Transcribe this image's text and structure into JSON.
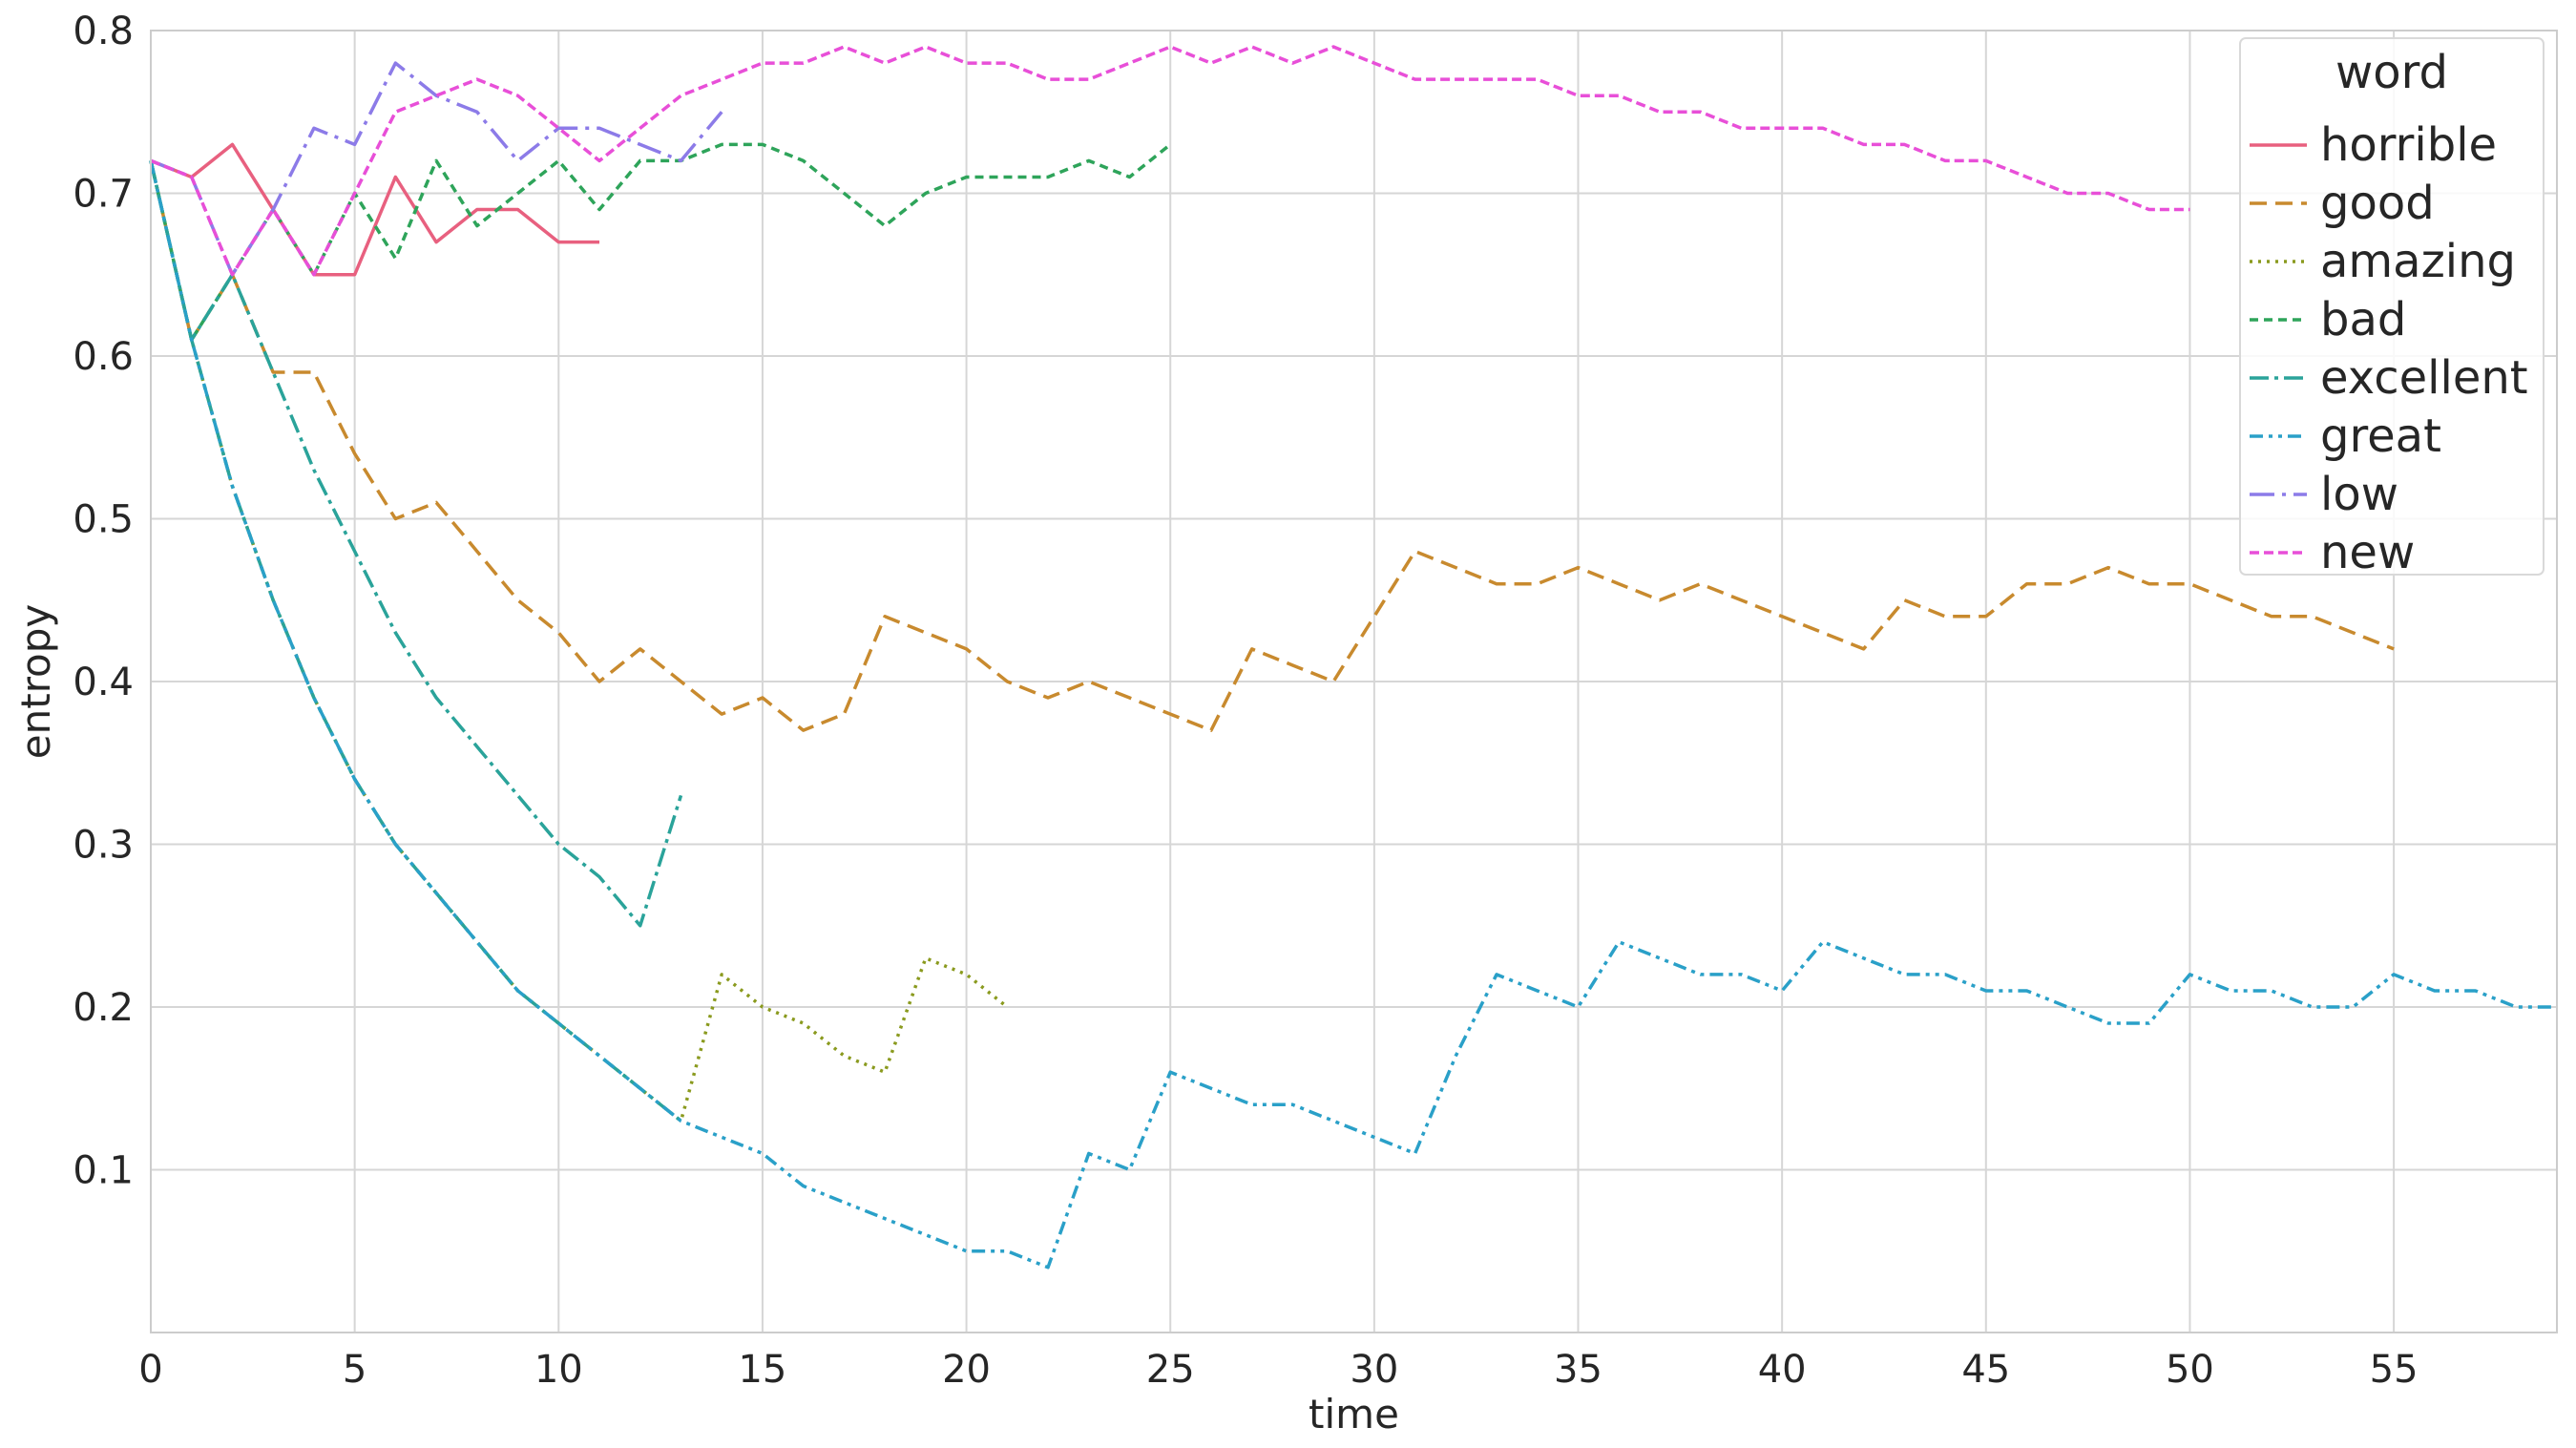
{
  "chart_data": {
    "type": "line",
    "title": "",
    "xlabel": "time",
    "ylabel": "entropy",
    "xlim": [
      0,
      59
    ],
    "ylim": [
      0,
      0.8
    ],
    "x_ticks": [
      0,
      5,
      10,
      15,
      20,
      25,
      30,
      35,
      40,
      45,
      50,
      55
    ],
    "y_ticks": [
      0.1,
      0.2,
      0.3,
      0.4,
      0.5,
      0.6,
      0.7,
      0.8
    ],
    "grid": true,
    "legend": {
      "title": "word",
      "position": "top-right"
    },
    "series": [
      {
        "name": "horrible",
        "color": "#e8607f",
        "dash": "solid",
        "x": [
          0,
          1,
          2,
          3,
          4,
          5,
          6,
          7,
          8,
          9,
          10,
          11
        ],
        "values": [
          0.72,
          0.71,
          0.73,
          0.69,
          0.65,
          0.65,
          0.71,
          0.67,
          0.69,
          0.69,
          0.67,
          0.67
        ]
      },
      {
        "name": "good",
        "color": "#c88a2e",
        "dash": "dashed",
        "x": [
          0,
          1,
          2,
          3,
          4,
          5,
          6,
          7,
          8,
          9,
          10,
          11,
          12,
          13,
          14,
          15,
          16,
          17,
          18,
          19,
          20,
          21,
          22,
          23,
          24,
          25,
          26,
          27,
          28,
          29,
          30,
          31,
          32,
          33,
          34,
          35,
          36,
          37,
          38,
          39,
          40,
          41,
          42,
          43,
          44,
          45,
          46,
          47,
          48,
          49,
          50,
          51,
          52,
          53,
          54,
          55
        ],
        "values": [
          0.72,
          0.61,
          0.65,
          0.59,
          0.59,
          0.54,
          0.5,
          0.51,
          0.48,
          0.45,
          0.43,
          0.4,
          0.42,
          0.4,
          0.38,
          0.39,
          0.37,
          0.38,
          0.44,
          0.43,
          0.42,
          0.4,
          0.39,
          0.4,
          0.39,
          0.38,
          0.37,
          0.42,
          0.41,
          0.4,
          0.44,
          0.48,
          0.47,
          0.46,
          0.46,
          0.47,
          0.46,
          0.45,
          0.46,
          0.45,
          0.44,
          0.43,
          0.42,
          0.45,
          0.44,
          0.44,
          0.46,
          0.46,
          0.47,
          0.46,
          0.46,
          0.45,
          0.44,
          0.44,
          0.43,
          0.42
        ]
      },
      {
        "name": "amazing",
        "color": "#8a9a1e",
        "dash": "dotted",
        "x": [
          0,
          1,
          2,
          3,
          4,
          5,
          6,
          7,
          8,
          9,
          10,
          11,
          12,
          13,
          14,
          15,
          16,
          17,
          18,
          19,
          20,
          21
        ],
        "values": [
          0.72,
          0.61,
          0.52,
          0.45,
          0.39,
          0.34,
          0.3,
          0.27,
          0.24,
          0.21,
          0.19,
          0.17,
          0.15,
          0.13,
          0.22,
          0.2,
          0.19,
          0.17,
          0.16,
          0.23,
          0.22,
          0.2
        ]
      },
      {
        "name": "bad",
        "color": "#2ea45a",
        "dash": "smalldash",
        "x": [
          0,
          1,
          2,
          3,
          4,
          5,
          6,
          7,
          8,
          9,
          10,
          11,
          12,
          13,
          14,
          15,
          16,
          17,
          18,
          19,
          20,
          21,
          22,
          23,
          24,
          25
        ],
        "values": [
          0.72,
          0.61,
          0.65,
          0.69,
          0.65,
          0.7,
          0.66,
          0.72,
          0.68,
          0.7,
          0.72,
          0.69,
          0.72,
          0.72,
          0.73,
          0.73,
          0.72,
          0.7,
          0.68,
          0.7,
          0.71,
          0.71,
          0.71,
          0.72,
          0.71,
          0.73
        ]
      },
      {
        "name": "excellent",
        "color": "#2aa39a",
        "dash": "dashdot",
        "x": [
          0,
          1,
          2,
          3,
          4,
          5,
          6,
          7,
          8,
          9,
          10,
          11,
          12,
          13
        ],
        "values": [
          0.72,
          0.61,
          0.52,
          0.45,
          0.39,
          0.34,
          0.3,
          0.27,
          0.24,
          0.21,
          0.19,
          0.17,
          0.15,
          0.13
        ],
        "x2": [
          0,
          1,
          2,
          3,
          4,
          5,
          6,
          7,
          8,
          9,
          10,
          11,
          12,
          13
        ],
        "values2": [
          0.72,
          0.61,
          0.65,
          0.59,
          0.53,
          0.48,
          0.43,
          0.39,
          0.36,
          0.33,
          0.3,
          0.28,
          0.25,
          0.33
        ]
      },
      {
        "name": "great",
        "color": "#2aa0c8",
        "dash": "dashdotdot",
        "x": [
          0,
          1,
          2,
          3,
          4,
          5,
          6,
          7,
          8,
          9,
          10,
          11,
          12,
          13,
          14,
          15,
          16,
          17,
          18,
          19,
          20,
          21,
          22,
          23,
          24,
          25,
          26,
          27,
          28,
          29,
          30,
          31,
          32,
          33,
          34,
          35,
          36,
          37,
          38,
          39,
          40,
          41,
          42,
          43,
          44,
          45,
          46,
          47,
          48,
          49,
          50,
          51,
          52,
          53,
          54,
          55,
          56,
          57,
          58,
          59
        ],
        "values": [
          0.72,
          0.61,
          0.52,
          0.45,
          0.39,
          0.34,
          0.3,
          0.27,
          0.24,
          0.21,
          0.19,
          0.17,
          0.15,
          0.13,
          0.12,
          0.11,
          0.09,
          0.08,
          0.07,
          0.06,
          0.05,
          0.05,
          0.04,
          0.11,
          0.1,
          0.16,
          0.15,
          0.14,
          0.14,
          0.13,
          0.12,
          0.11,
          0.17,
          0.22,
          0.21,
          0.2,
          0.24,
          0.23,
          0.22,
          0.22,
          0.21,
          0.24,
          0.23,
          0.22,
          0.22,
          0.21,
          0.21,
          0.2,
          0.19,
          0.19,
          0.22,
          0.21,
          0.21,
          0.2,
          0.2,
          0.22,
          0.21,
          0.21,
          0.2,
          0.2
        ]
      },
      {
        "name": "low",
        "color": "#8c7be8",
        "dash": "longdashdot",
        "x": [
          0,
          1,
          2,
          3,
          4,
          5,
          6,
          7,
          8,
          9,
          10,
          11,
          12,
          13,
          14
        ],
        "values": [
          0.72,
          0.71,
          0.65,
          0.69,
          0.74,
          0.73,
          0.78,
          0.76,
          0.75,
          0.72,
          0.74,
          0.74,
          0.73,
          0.72,
          0.75
        ]
      },
      {
        "name": "new",
        "color": "#e84fd8",
        "dash": "denselydashed",
        "x": [
          0,
          1,
          2,
          3,
          4,
          5,
          6,
          7,
          8,
          9,
          10,
          11,
          12,
          13,
          14,
          15,
          16,
          17,
          18,
          19,
          20,
          21,
          22,
          23,
          24,
          25,
          26,
          27,
          28,
          29,
          30,
          31,
          32,
          33,
          34,
          35,
          36,
          37,
          38,
          39,
          40,
          41,
          42,
          43,
          44,
          45,
          46,
          47,
          48,
          49,
          50
        ],
        "values": [
          0.72,
          0.71,
          0.65,
          0.69,
          0.65,
          0.7,
          0.75,
          0.76,
          0.77,
          0.76,
          0.74,
          0.72,
          0.74,
          0.76,
          0.77,
          0.78,
          0.78,
          0.79,
          0.78,
          0.79,
          0.78,
          0.78,
          0.77,
          0.77,
          0.78,
          0.79,
          0.78,
          0.79,
          0.78,
          0.79,
          0.78,
          0.77,
          0.77,
          0.77,
          0.77,
          0.76,
          0.76,
          0.75,
          0.75,
          0.74,
          0.74,
          0.74,
          0.73,
          0.73,
          0.72,
          0.72,
          0.71,
          0.7,
          0.7,
          0.69,
          0.69
        ]
      }
    ]
  }
}
